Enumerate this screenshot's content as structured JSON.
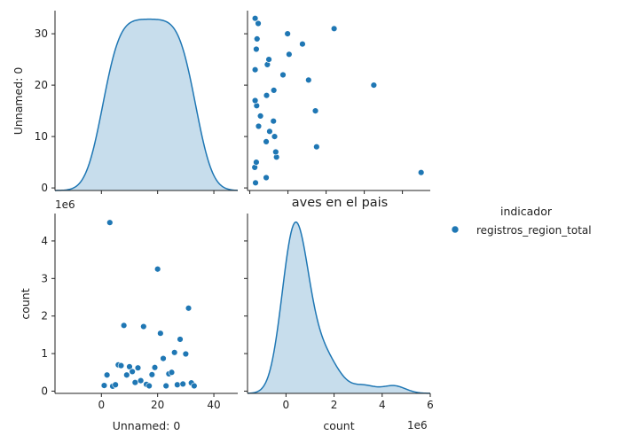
{
  "chart_data": {
    "type": "scatter",
    "kind": "pairplot",
    "title": "aves en el pais",
    "variables": [
      "Unnamed: 0",
      "count"
    ],
    "offset_labels": {
      "count": "1e6"
    },
    "hue": {
      "title": "indicador",
      "levels": [
        "registros_region_total"
      ],
      "color": "#1f77b4"
    },
    "legend_placement": "right",
    "grid": false,
    "axes": {
      "Unnamed: 0": {
        "ticks": [
          0,
          20,
          40
        ],
        "lim": [
          -16.5,
          48.5
        ],
        "diag_ticks": [
          0,
          10,
          20,
          30
        ],
        "diag_lim": [
          -0.5,
          34.5
        ]
      },
      "count": {
        "ticks": [
          0,
          1,
          2,
          3,
          4
        ],
        "lim": [
          -0.06,
          4.73
        ],
        "diag_ticks": [
          0,
          2,
          4,
          6
        ],
        "diag_lim": [
          -1.6,
          6.0
        ]
      }
    },
    "points": [
      {
        "x": 1,
        "y": 0.15
      },
      {
        "x": 2,
        "y": 0.43
      },
      {
        "x": 3,
        "y": 4.49
      },
      {
        "x": 4,
        "y": 0.13
      },
      {
        "x": 5,
        "y": 0.17
      },
      {
        "x": 6,
        "y": 0.7
      },
      {
        "x": 7,
        "y": 0.68
      },
      {
        "x": 8,
        "y": 1.75
      },
      {
        "x": 9,
        "y": 0.43
      },
      {
        "x": 10,
        "y": 0.65
      },
      {
        "x": 11,
        "y": 0.52
      },
      {
        "x": 12,
        "y": 0.23
      },
      {
        "x": 13,
        "y": 0.62
      },
      {
        "x": 14,
        "y": 0.28
      },
      {
        "x": 15,
        "y": 1.72
      },
      {
        "x": 16,
        "y": 0.18
      },
      {
        "x": 17,
        "y": 0.14
      },
      {
        "x": 18,
        "y": 0.44
      },
      {
        "x": 19,
        "y": 0.63
      },
      {
        "x": 20,
        "y": 3.25
      },
      {
        "x": 21,
        "y": 1.54
      },
      {
        "x": 22,
        "y": 0.87
      },
      {
        "x": 23,
        "y": 0.14
      },
      {
        "x": 24,
        "y": 0.46
      },
      {
        "x": 25,
        "y": 0.5
      },
      {
        "x": 26,
        "y": 1.03
      },
      {
        "x": 27,
        "y": 0.17
      },
      {
        "x": 28,
        "y": 1.38
      },
      {
        "x": 29,
        "y": 0.19
      },
      {
        "x": 30,
        "y": 0.99
      },
      {
        "x": 31,
        "y": 2.21
      },
      {
        "x": 32,
        "y": 0.22
      },
      {
        "x": 33,
        "y": 0.14
      }
    ]
  }
}
